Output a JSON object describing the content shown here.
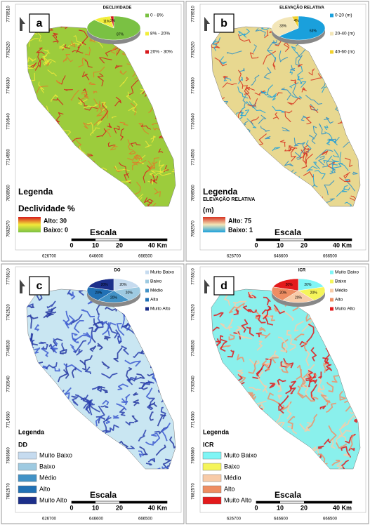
{
  "coordinates": {
    "northing": [
      "7778510",
      "7762520",
      "7746530",
      "7730540",
      "7714550",
      "7698560",
      "7682570"
    ],
    "easting": [
      "626700",
      "646600",
      "666500"
    ]
  },
  "panels": [
    {
      "letter": "a",
      "pie": {
        "title": "DECLIVIDADE",
        "slices": [
          {
            "name": "0 - 8%",
            "value": 87,
            "label": "87%",
            "color": "#7ac143"
          },
          {
            "name": "8% - 20%",
            "value": 11,
            "label": "11%",
            "color": "#f2ee3a"
          },
          {
            "name": "20% - 30%",
            "value": 2,
            "label": "2%",
            "color": "#d7191c"
          }
        ]
      },
      "legend": {
        "heading": "Legenda",
        "title": "Declividade %",
        "high": "Alto: 30",
        "low": "Baixo: 0"
      },
      "scale": {
        "title": "Escala",
        "labels": [
          "0",
          "10",
          "20",
          "40 Km"
        ]
      }
    },
    {
      "letter": "b",
      "pie": {
        "title": "ELEVAÇÃO RELATIVA",
        "slices": [
          {
            "name": "0-20 (m)",
            "value": 63,
            "label": "63%",
            "color": "#1aa0dc"
          },
          {
            "name": "20-40 (m)",
            "value": 33,
            "label": "33%",
            "color": "#f3e6b8"
          },
          {
            "name": "40-60 (m)",
            "value": 4,
            "label": "4%",
            "color": "#f2d22e"
          }
        ]
      },
      "legend": {
        "heading": "Legenda",
        "title": "ELEVAÇÃO RELATIVA",
        "unit": "(m)",
        "high": "Alto: 75",
        "low": "Baixo: 1"
      },
      "scale": {
        "title": "Escala",
        "labels": [
          "0",
          "10",
          "20",
          "40 Km"
        ]
      }
    },
    {
      "letter": "c",
      "pie": {
        "title": "DO",
        "slices": [
          {
            "name": "Muito Baixo",
            "value": 20,
            "label": "20%",
            "color": "#c6dbef"
          },
          {
            "name": "Baixo",
            "value": 20,
            "label": "20%",
            "color": "#9ecae1"
          },
          {
            "name": "Médio",
            "value": 20,
            "label": "20%",
            "color": "#4292c6"
          },
          {
            "name": "Alto",
            "value": 20,
            "label": "20%",
            "color": "#2171b5"
          },
          {
            "name": "Muito Alto",
            "value": 20,
            "label": "20%",
            "color": "#1c2f8a"
          }
        ]
      },
      "legend": {
        "heading": "Legenda",
        "title": "DD"
      },
      "scale": {
        "title": "Escala",
        "labels": [
          "0",
          "10",
          "20",
          "40 Km"
        ]
      }
    },
    {
      "letter": "d",
      "pie": {
        "title": "ICR",
        "slices": [
          {
            "name": "Muito Baixo",
            "value": 20,
            "label": "20%",
            "color": "#7ff5f5"
          },
          {
            "name": "Baixo",
            "value": 20,
            "label": "20%",
            "color": "#f5f55a"
          },
          {
            "name": "Médio",
            "value": 20,
            "label": "20%",
            "color": "#f8cba8"
          },
          {
            "name": "Alto",
            "value": 20,
            "label": "20%",
            "color": "#ee8d62"
          },
          {
            "name": "Muito Alto",
            "value": 20,
            "label": "20%",
            "color": "#e31a1c"
          }
        ]
      },
      "legend": {
        "heading": "Legenda",
        "title": "ICR"
      },
      "scale": {
        "title": "Escala",
        "labels": [
          "0",
          "10",
          "20",
          "40 Km"
        ]
      }
    }
  ]
}
